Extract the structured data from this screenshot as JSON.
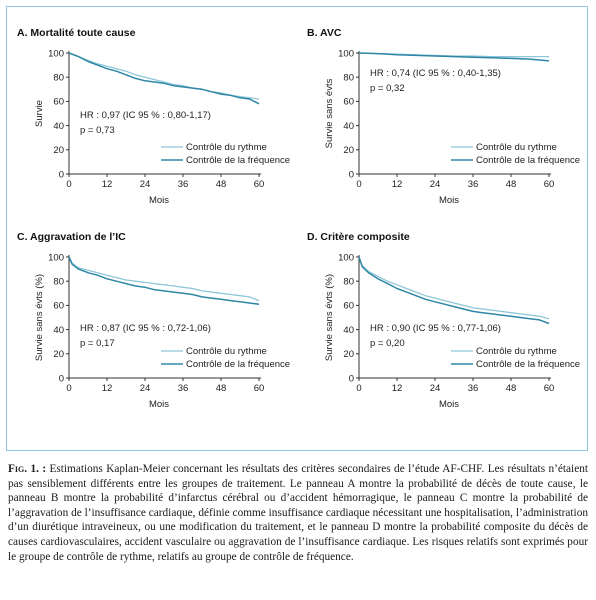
{
  "colors": {
    "rhythm": "#8fc6d8",
    "rate": "#2f87a6",
    "frame": "#8ec4de"
  },
  "legend": {
    "rhythm": "Contrôle du rythme",
    "rate": "Contrôle de la fréquence"
  },
  "caption": {
    "fig_label": "Fig. 1. :",
    "text": " Estimations Kaplan-Meier concernant les résultats des critères secondaires de l’étude AF-CHF. Les résultats n’étaient pas sensiblement différents entre les groupes de traitement. Le panneau A montre la probabilité de décès de toute cause, le panneau B montre la probabilité d’infarctus cérébral ou d’accident hémorragique, le panneau C montre la probabilité de l’aggravation de l’insuffisance cardiaque, définie comme insuffisance cardiaque nécessitant une hospitalisation, l’administration d’un diurétique intraveineux, ou une modification du traitement, et le panneau D montre la probabilité composite du décès de causes cardiovasculaires, accident vasculaire ou aggravation de l’insuffisance cardiaque. Les risques relatifs sont exprimés pour le groupe de contrôle de rythme, relatifs au groupe de contrôle de fréquence."
  },
  "chart_data": [
    {
      "type": "line",
      "title": "A. Mortalité toute cause",
      "xlabel": "Mois",
      "ylabel": "Survie",
      "xlim": [
        0,
        60
      ],
      "ylim": [
        0,
        100
      ],
      "xticks": [
        0,
        12,
        24,
        36,
        48,
        60
      ],
      "yticks": [
        0,
        20,
        40,
        60,
        80,
        100
      ],
      "annotation": [
        "HR : 0,97 (IC 95 % : 0,80-1,17)",
        "p = 0,73"
      ],
      "series": [
        {
          "name": "Contrôle du rythme",
          "x": [
            0,
            3,
            6,
            9,
            12,
            15,
            18,
            21,
            24,
            27,
            30,
            33,
            36,
            39,
            42,
            45,
            48,
            51,
            54,
            57,
            60
          ],
          "values": [
            100,
            97,
            94,
            91,
            89,
            87,
            85,
            82,
            80,
            78,
            76,
            74,
            73,
            71,
            70,
            68,
            67,
            65,
            64,
            63,
            62
          ]
        },
        {
          "name": "Contrôle de la fréquence",
          "x": [
            0,
            3,
            6,
            9,
            12,
            15,
            18,
            21,
            24,
            27,
            30,
            33,
            36,
            39,
            42,
            45,
            48,
            51,
            54,
            57,
            60
          ],
          "values": [
            100,
            97,
            93,
            90,
            87,
            85,
            82,
            79,
            77,
            76,
            75,
            73,
            72,
            71,
            70,
            68,
            66,
            65,
            63,
            62,
            58
          ]
        }
      ]
    },
    {
      "type": "line",
      "title": "B. AVC",
      "xlabel": "Mois",
      "ylabel": "Survie sans évts",
      "xlim": [
        0,
        60
      ],
      "ylim": [
        0,
        100
      ],
      "xticks": [
        0,
        12,
        24,
        36,
        48,
        60
      ],
      "yticks": [
        0,
        20,
        40,
        60,
        80,
        100
      ],
      "annotation": [
        "HR : 0,74 (IC 95 % : 0,40-1,35)",
        "p = 0,32"
      ],
      "series": [
        {
          "name": "Contrôle du rythme",
          "x": [
            0,
            6,
            12,
            18,
            24,
            30,
            36,
            42,
            48,
            54,
            60
          ],
          "values": [
            100,
            99.5,
            99,
            98.5,
            98,
            97.5,
            97.5,
            97,
            97,
            97,
            97
          ]
        },
        {
          "name": "Contrôle de la fréquence",
          "x": [
            0,
            6,
            12,
            18,
            24,
            30,
            36,
            42,
            48,
            54,
            60
          ],
          "values": [
            100,
            99.5,
            98.5,
            98,
            97.5,
            97,
            96.5,
            96,
            95.5,
            95,
            93.5
          ]
        }
      ]
    },
    {
      "type": "line",
      "title": "C. Aggravation de l’IC",
      "xlabel": "Mois",
      "ylabel": "Survie sans évts (%)",
      "xlim": [
        0,
        60
      ],
      "ylim": [
        0,
        100
      ],
      "xticks": [
        0,
        12,
        24,
        36,
        48,
        60
      ],
      "yticks": [
        0,
        20,
        40,
        60,
        80,
        100
      ],
      "annotation": [
        "HR : 0,87 (IC 95 % : 0,72-1,06)",
        "p = 0,17"
      ],
      "series": [
        {
          "name": "Contrôle du rythme",
          "x": [
            0,
            1,
            3,
            6,
            9,
            12,
            15,
            18,
            21,
            24,
            27,
            30,
            33,
            36,
            39,
            42,
            45,
            48,
            51,
            54,
            57,
            60
          ],
          "values": [
            100,
            95,
            91,
            89,
            87,
            85,
            83,
            81,
            80,
            79,
            78,
            77,
            76,
            75,
            74,
            72,
            71,
            70,
            69,
            68,
            67,
            64
          ]
        },
        {
          "name": "Contrôle de la fréquence",
          "x": [
            0,
            1,
            3,
            6,
            9,
            12,
            15,
            18,
            21,
            24,
            27,
            30,
            33,
            36,
            39,
            42,
            45,
            48,
            51,
            54,
            57,
            60
          ],
          "values": [
            100,
            94,
            90,
            87,
            85,
            82,
            80,
            78,
            76,
            75,
            73,
            72,
            71,
            70,
            69,
            67,
            66,
            65,
            64,
            63,
            62,
            61
          ]
        }
      ]
    },
    {
      "type": "line",
      "title": "D. Critère composite",
      "xlabel": "Mois",
      "ylabel": "Survie sans évts (%)",
      "xlim": [
        0,
        60
      ],
      "ylim": [
        0,
        100
      ],
      "xticks": [
        0,
        12,
        24,
        36,
        48,
        60
      ],
      "yticks": [
        0,
        20,
        40,
        60,
        80,
        100
      ],
      "annotation": [
        "HR : 0,90 (IC 95 % : 0,77-1,06)",
        "p = 0,20"
      ],
      "series": [
        {
          "name": "Contrôle du rythme",
          "x": [
            0,
            1,
            3,
            6,
            9,
            12,
            15,
            18,
            21,
            24,
            27,
            30,
            33,
            36,
            39,
            42,
            45,
            48,
            51,
            54,
            57,
            60
          ],
          "values": [
            100,
            93,
            88,
            84,
            80,
            77,
            74,
            71,
            68,
            66,
            64,
            62,
            60,
            58,
            57,
            56,
            55,
            54,
            53,
            52,
            51,
            49
          ]
        },
        {
          "name": "Contrôle de la fréquence",
          "x": [
            0,
            1,
            3,
            6,
            9,
            12,
            15,
            18,
            21,
            24,
            27,
            30,
            33,
            36,
            39,
            42,
            45,
            48,
            51,
            54,
            57,
            60
          ],
          "values": [
            100,
            92,
            87,
            82,
            78,
            74,
            71,
            68,
            65,
            63,
            61,
            59,
            57,
            55,
            54,
            53,
            52,
            51,
            50,
            49,
            48,
            45
          ]
        }
      ]
    }
  ]
}
